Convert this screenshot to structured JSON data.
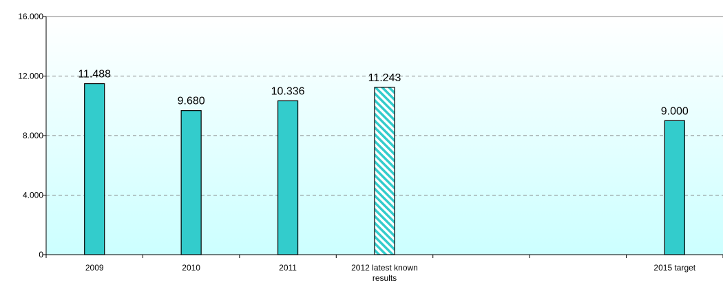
{
  "chart_data": {
    "type": "bar",
    "categories": [
      "2009",
      "2010",
      "2011",
      "2012 latest known results",
      "",
      "",
      "2015 target"
    ],
    "category_lines": [
      [
        "2009"
      ],
      [
        "2010"
      ],
      [
        "2011"
      ],
      [
        "2012 latest known",
        "results"
      ],
      [
        ""
      ],
      [
        ""
      ],
      [
        "2015 target"
      ]
    ],
    "values": [
      11488,
      9680,
      10336,
      11243,
      null,
      null,
      9000
    ],
    "data_labels": [
      "11.488",
      "9.680",
      "10.336",
      "11.243",
      "",
      "",
      "9.000"
    ],
    "patterned": [
      false,
      false,
      false,
      true,
      false,
      false,
      false
    ],
    "ylim": [
      0,
      16000
    ],
    "yticks": [
      0,
      4000,
      8000,
      12000,
      16000
    ],
    "ytick_labels": [
      "0",
      "4.000",
      "8.000",
      "12.000",
      "16.000"
    ],
    "title": "",
    "xlabel": "",
    "ylabel": "",
    "grid": true,
    "legend": "none",
    "colors": {
      "bar": "#33CCCC",
      "bar_outline": "#000000",
      "hatch": "#33CCCC",
      "plot_bg_top": "#FFFFFF",
      "plot_bg_bottom": "#CCFFFF",
      "gridline": "#808080"
    }
  }
}
